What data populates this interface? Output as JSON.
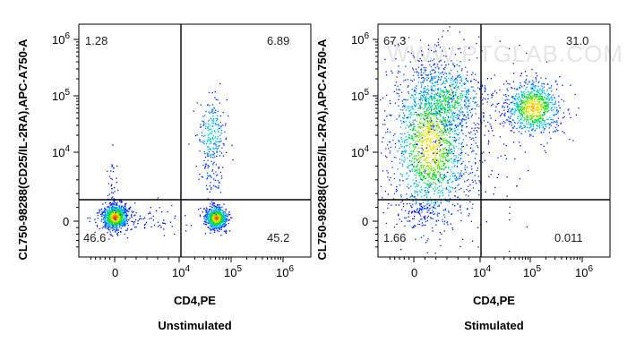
{
  "chart_data": [
    {
      "type": "scatter",
      "subtitle": "Unstimulated",
      "xlabel": "CD4,PE",
      "ylabel": "CL750-98288(CD25/IL-2RA),APC-A750-A",
      "x_ticks": [
        {
          "base": "0",
          "exp": ""
        },
        {
          "base": "10",
          "exp": "4"
        },
        {
          "base": "10",
          "exp": "5"
        },
        {
          "base": "10",
          "exp": "6"
        }
      ],
      "y_ticks": [
        {
          "base": "0",
          "exp": ""
        },
        {
          "base": "10",
          "exp": "4"
        },
        {
          "base": "10",
          "exp": "5"
        },
        {
          "base": "10",
          "exp": "6"
        }
      ],
      "quadrants": {
        "upper_left": "1.28",
        "upper_right": "6.89",
        "lower_left": "46.6",
        "lower_right": "45.2"
      },
      "gate": {
        "x": 10000,
        "y": 1000
      },
      "populations": [
        {
          "name": "CD4- CD25-",
          "x_center": 0,
          "y_center": 0,
          "density": "high"
        },
        {
          "name": "CD4+ CD25-",
          "x_center": 60000,
          "y_center": 0,
          "density": "high"
        },
        {
          "name": "CD4+ CD25+",
          "x_center": 60000,
          "y_center": 20000,
          "density": "low"
        }
      ]
    },
    {
      "type": "scatter",
      "subtitle": "Stimulated",
      "xlabel": "CD4,PE",
      "ylabel": "CL750-98288(CD25/IL-2RA),APC-A750-A",
      "x_ticks": [
        {
          "base": "0",
          "exp": ""
        },
        {
          "base": "10",
          "exp": "4"
        },
        {
          "base": "10",
          "exp": "5"
        },
        {
          "base": "10",
          "exp": "6"
        }
      ],
      "y_ticks": [
        {
          "base": "0",
          "exp": ""
        },
        {
          "base": "10",
          "exp": "4"
        },
        {
          "base": "10",
          "exp": "5"
        },
        {
          "base": "10",
          "exp": "6"
        }
      ],
      "quadrants": {
        "upper_left": "67.3",
        "upper_right": "31.0",
        "lower_left": "1.66",
        "lower_right": "0.011"
      },
      "gate": {
        "x": 10000,
        "y": 1000
      },
      "watermark": "WWW.PTGLAB.COM",
      "populations": [
        {
          "name": "CD4- CD25+",
          "x_center": 2000,
          "y_center": 15000,
          "density": "high"
        },
        {
          "name": "CD4+ CD25+",
          "x_center": 120000,
          "y_center": 40000,
          "density": "high"
        }
      ]
    }
  ],
  "colors": {
    "axis": "#000000",
    "gate_line": "#000000",
    "density_low": "#0000ff",
    "density_mid": "#00ff00",
    "density_high": "#ff0000"
  }
}
